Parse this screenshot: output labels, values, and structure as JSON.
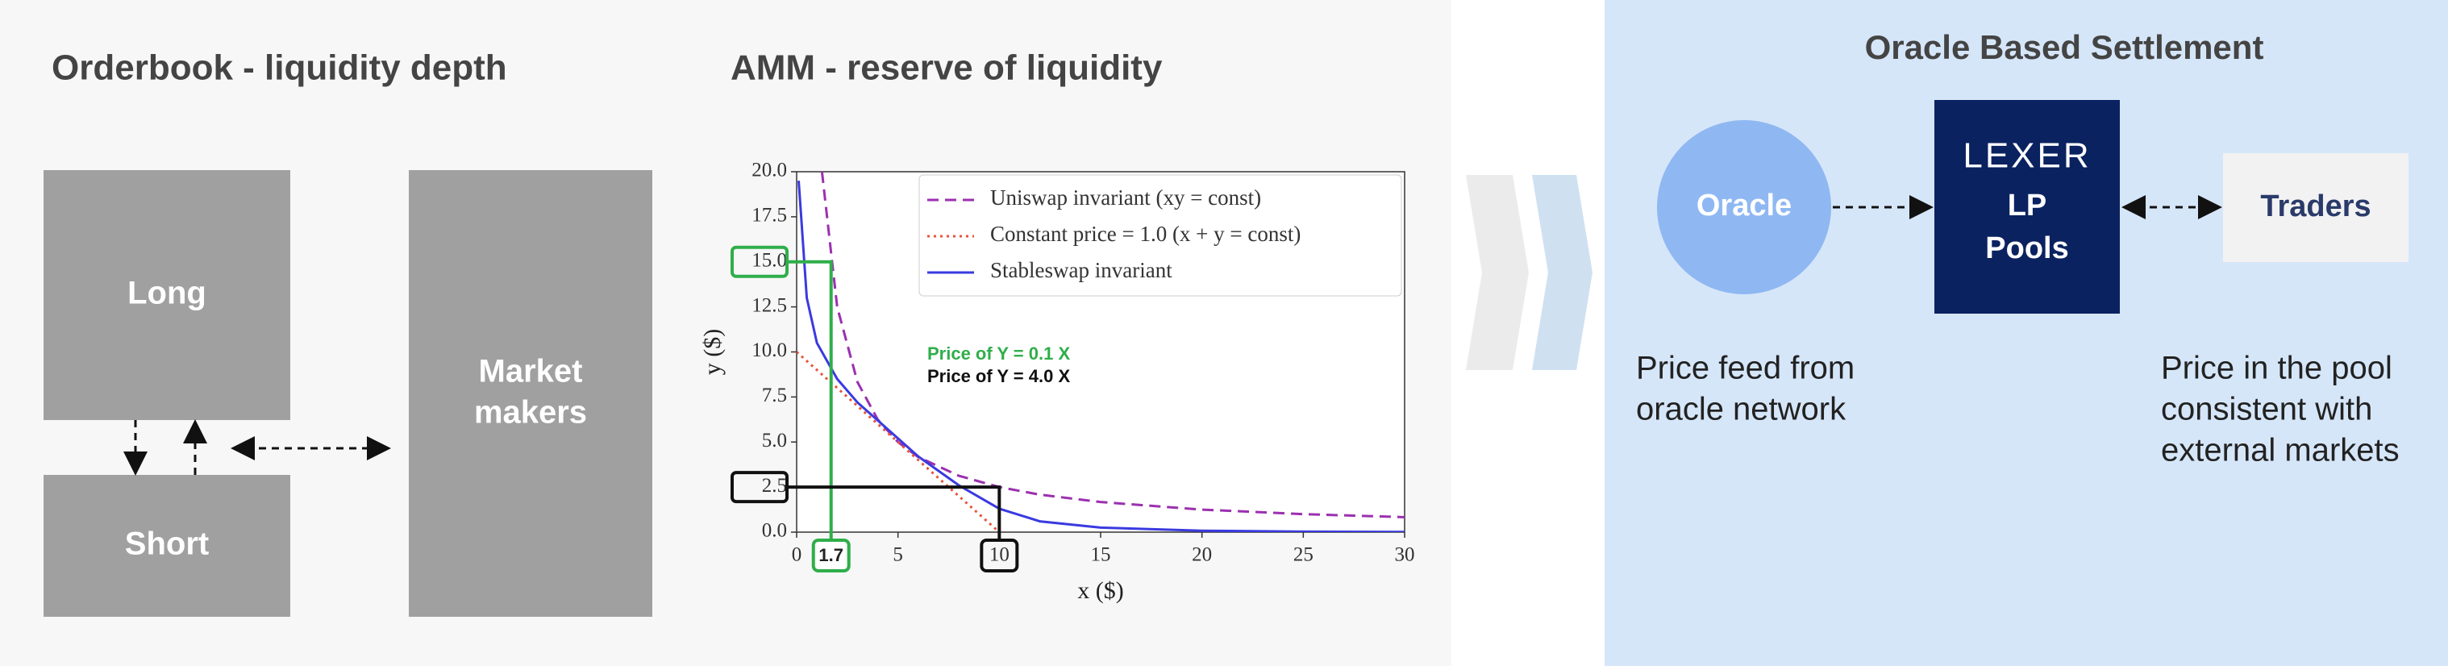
{
  "orderbook": {
    "title": "Orderbook - liquidity depth",
    "long": "Long",
    "short": "Short",
    "market_makers": [
      "Market",
      "makers"
    ]
  },
  "amm": {
    "title": "AMM - reserve of liquidity"
  },
  "chart_data": {
    "type": "line",
    "xlabel": "x ($)",
    "ylabel": "y ($)",
    "xlim": [
      0,
      30
    ],
    "ylim": [
      0,
      20
    ],
    "xticks": [
      0,
      5,
      10,
      15,
      20,
      25,
      30
    ],
    "yticks": [
      {
        "value": 0,
        "label": "0.0"
      },
      2.5,
      {
        "value": 5,
        "label": "5.0"
      },
      7.5,
      {
        "value": 10,
        "label": "10.0"
      },
      12.5,
      {
        "value": 15,
        "label": "15.0"
      },
      17.5,
      {
        "value": 20,
        "label": "20.0"
      }
    ],
    "series": [
      {
        "name": "Uniswap invariant (xy = const)",
        "color": "#9b30b0",
        "style": "dashed",
        "x": [
          1.25,
          2,
          3,
          4,
          5,
          6,
          8,
          10,
          12,
          15,
          20,
          25,
          30
        ],
        "values": [
          20,
          12.5,
          8.33,
          6.25,
          5,
          4.17,
          3.13,
          2.5,
          2.08,
          1.67,
          1.25,
          1,
          0.83
        ]
      },
      {
        "name": "Constant price = 1.0 (x + y = const)",
        "color": "#e8533a",
        "style": "dotted",
        "x": [
          0,
          10
        ],
        "values": [
          10,
          0
        ]
      },
      {
        "name": "Stableswap invariant",
        "color": "#3a3ae0",
        "style": "solid",
        "x": [
          0.1,
          0.5,
          1,
          2,
          3,
          4,
          5,
          6,
          8,
          10,
          12,
          15,
          20,
          25,
          30
        ],
        "values": [
          19.5,
          13,
          10.5,
          8.5,
          7.2,
          6.2,
          5.2,
          4.2,
          2.6,
          1.3,
          0.6,
          0.25,
          0.08,
          0.03,
          0.01
        ]
      }
    ],
    "annotations": [
      {
        "text": "Price of Y = 0.1 X",
        "color": "#2fae4a",
        "x": 1.7,
        "y": 15
      },
      {
        "text": "Price of Y = 4.0 X",
        "color": "#111111",
        "x": 10,
        "y": 2.5
      }
    ]
  },
  "settlement": {
    "title": "Oracle Based Settlement",
    "oracle": "Oracle",
    "logo": "LEXER",
    "pool": [
      "LP",
      "Pools"
    ],
    "traders": "Traders",
    "oracle_caption": [
      "Price feed from",
      "oracle network"
    ],
    "traders_caption": [
      "Price in the pool",
      "consistent with",
      "external markets"
    ]
  }
}
